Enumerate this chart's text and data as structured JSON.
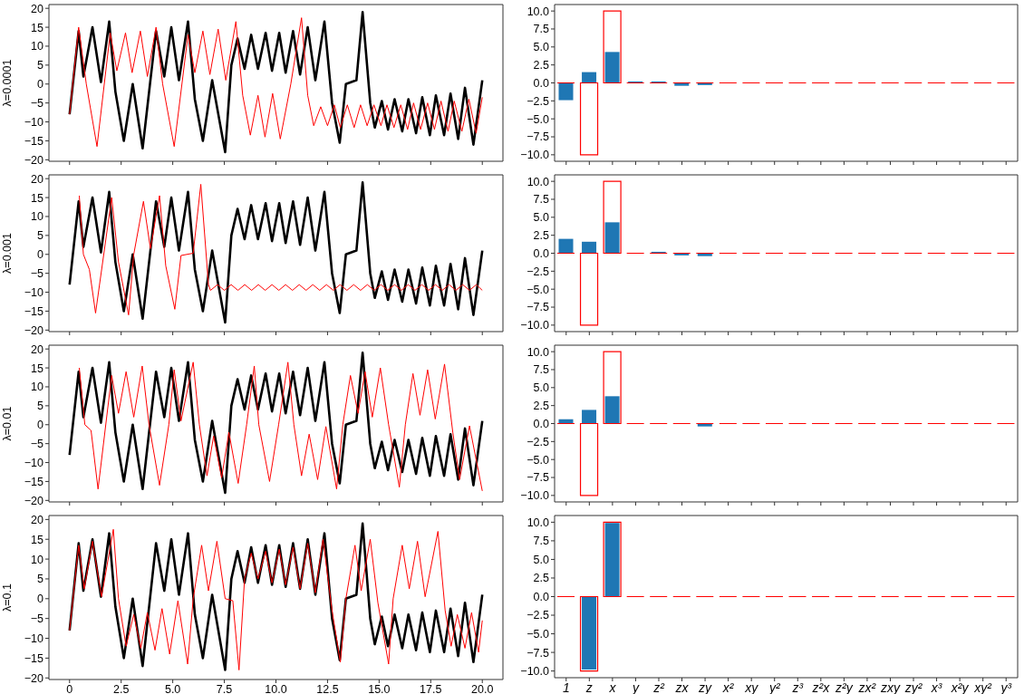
{
  "chart_data": [
    {
      "type": "line",
      "ylabel": "λ=0.0001",
      "marker": "none",
      "xlim": [
        -1,
        21
      ],
      "xticks": [
        0,
        2.5,
        {
          "value": 5,
          "label": null
        },
        7.5,
        {
          "value": 10,
          "label": null
        },
        12.5,
        {
          "value": 15,
          "label": null
        },
        17.5,
        {
          "value": 20,
          "label": null
        }
      ],
      "ylim": [
        -20.4,
        21
      ],
      "yticks": [
        {
          "value": -20,
          "label": "−20"
        },
        {
          "value": -15,
          "label": "−15"
        },
        {
          "value": -10,
          "label": "−10"
        },
        {
          "value": -5,
          "label": "−5"
        },
        0,
        5,
        10,
        15,
        20
      ],
      "tick_labels": "y",
      "series": [
        {
          "color": "#000000",
          "x": [
            0,
            0.44,
            0.67,
            1.11,
            1.52,
            1.92,
            2.22,
            2.63,
            3.06,
            3.54,
            4.19,
            4.59,
            4.93,
            5.3,
            5.74,
            6.07,
            6.46,
            6.91,
            7.54,
            7.84,
            8.14,
            8.48,
            8.8,
            9.13,
            9.5,
            9.81,
            10.16,
            10.47,
            10.83,
            11.17,
            11.54,
            11.91,
            12.35,
            12.72,
            13.09,
            13.39,
            13.9,
            14.2,
            14.57,
            14.79,
            15.13,
            15.43,
            15.75,
            16.12,
            16.42,
            16.79,
            17.09,
            17.46,
            17.75,
            18.15,
            18.46,
            18.83,
            19.16,
            19.57,
            20
          ],
          "values": [
            -8,
            14,
            2,
            15,
            0.5,
            16.5,
            -2,
            -15,
            0,
            -17,
            14,
            2,
            15,
            1,
            16.5,
            -4,
            -15,
            1,
            -18,
            5,
            12,
            4,
            13,
            4,
            13.5,
            3.5,
            13.5,
            3,
            14,
            2.5,
            15,
            1,
            16.5,
            -5,
            -15.5,
            0,
            1,
            19,
            -5,
            -11.5,
            -4.5,
            -12,
            -4,
            -12.5,
            -4,
            -13,
            -3.5,
            -13.5,
            -3,
            -13.5,
            -2.5,
            -14.5,
            -1,
            -16,
            1
          ]
        },
        {
          "color": "#ff0000",
          "x": [
            0,
            0.44,
            0.81,
            1.33,
            1.97,
            2.29,
            2.71,
            3.03,
            3.43,
            3.77,
            4.19,
            4.51,
            5.07,
            5.74,
            6.07,
            6.46,
            6.8,
            7.2,
            7.57,
            8.06,
            8.39,
            8.76,
            9.13,
            9.47,
            9.84,
            10.21,
            10.72,
            11.24,
            11.54,
            11.83,
            12.17,
            12.5,
            12.83,
            13.12,
            13.46,
            13.79,
            14.1,
            14.42,
            14.75,
            15.09,
            15.38,
            15.72,
            16.05,
            16.38,
            16.67,
            17.01,
            17.35,
            17.68,
            18.0,
            18.34,
            18.64,
            19.01,
            19.35,
            19.7,
            20
          ],
          "values": [
            -8,
            15,
            0,
            -16.5,
            13.5,
            3.5,
            13.5,
            3,
            14,
            2,
            15,
            0,
            -16.5,
            13,
            3,
            14,
            2.5,
            14.5,
            1,
            16.5,
            -3,
            -13.5,
            -3,
            -14,
            -2.5,
            -14.5,
            0,
            17.5,
            -3,
            -11,
            -6,
            -11,
            -5.5,
            -11.5,
            -5.5,
            -11.5,
            -5.5,
            -11,
            -5.5,
            -11,
            -5.5,
            -11.5,
            -5.5,
            -12,
            -5,
            -12,
            -5,
            -12,
            -4.5,
            -12.5,
            -4.5,
            -12.5,
            -4,
            -13,
            -3.5
          ]
        }
      ]
    },
    {
      "type": "bar",
      "categories": [
        null,
        null,
        null,
        null,
        null,
        null,
        null,
        null,
        null,
        null,
        null,
        null,
        null,
        null,
        null,
        null,
        null,
        null,
        null,
        null
      ],
      "ylim": [
        -10.9,
        10.9
      ],
      "yticks": [
        {
          "value": -10,
          "label": "−10.0"
        },
        {
          "value": -7.5,
          "label": "−7.5"
        },
        {
          "value": -5,
          "label": "−5.0"
        },
        {
          "value": -2.5,
          "label": "−2.5"
        },
        {
          "value": 0,
          "label": "0.0"
        },
        2.5,
        {
          "value": 5,
          "label": "5.0"
        },
        7.5,
        {
          "value": 10,
          "label": "10.0"
        }
      ],
      "tick_labels": "y",
      "series": [
        {
          "color": "#1f77b4",
          "values": [
            -2.4,
            1.5,
            4.3,
            0.2,
            0.2,
            -0.4,
            -0.3,
            null,
            null,
            0,
            0,
            0,
            0,
            0,
            0,
            0,
            0,
            0,
            0,
            0
          ]
        },
        {
          "color": "#ff0000",
          "values": [
            0,
            -10,
            10,
            0,
            0,
            0,
            0,
            0,
            0,
            0,
            0,
            0,
            0,
            0,
            0,
            0,
            0,
            0,
            0,
            0
          ]
        }
      ]
    },
    {
      "type": "line",
      "ylabel": "λ=0.001",
      "marker": "none",
      "xlim": [
        -1,
        21
      ],
      "xticks": [
        0,
        2.5,
        {
          "value": 5,
          "label": null
        },
        7.5,
        {
          "value": 10,
          "label": null
        },
        12.5,
        {
          "value": 15,
          "label": null
        },
        17.5,
        {
          "value": 20,
          "label": null
        }
      ],
      "ylim": [
        -20.4,
        21
      ],
      "yticks": [
        {
          "value": -20,
          "label": "−20"
        },
        {
          "value": -15,
          "label": "−15"
        },
        {
          "value": -10,
          "label": "−10"
        },
        {
          "value": -5,
          "label": "−5"
        },
        0,
        5,
        10,
        15,
        20
      ],
      "tick_labels": "y",
      "series": [
        {
          "color": "#000000",
          "x": [
            0,
            0.44,
            0.67,
            1.11,
            1.52,
            1.92,
            2.22,
            2.63,
            3.06,
            3.54,
            4.19,
            4.59,
            4.93,
            5.3,
            5.74,
            6.07,
            6.46,
            6.91,
            7.54,
            7.84,
            8.14,
            8.48,
            8.8,
            9.13,
            9.5,
            9.81,
            10.16,
            10.47,
            10.83,
            11.17,
            11.54,
            11.91,
            12.35,
            12.72,
            13.09,
            13.39,
            13.9,
            14.2,
            14.57,
            14.79,
            15.13,
            15.43,
            15.75,
            16.12,
            16.42,
            16.79,
            17.09,
            17.46,
            17.75,
            18.15,
            18.46,
            18.83,
            19.16,
            19.57,
            20
          ],
          "values": [
            -8,
            14,
            2,
            15,
            0.5,
            16.5,
            -2,
            -15,
            0,
            -17,
            14,
            2,
            15,
            1,
            16.5,
            -4,
            -15,
            1,
            -18,
            5,
            12,
            4,
            13,
            4,
            13.5,
            3.5,
            13.5,
            3,
            14,
            2.5,
            15,
            1,
            16.5,
            -5,
            -15.5,
            0,
            1,
            19,
            -5,
            -11.5,
            -4.5,
            -12,
            -4,
            -12.5,
            -4,
            -13,
            -3.5,
            -13.5,
            -3,
            -13.5,
            -2.5,
            -14.5,
            -1,
            -16,
            1
          ]
        },
        {
          "color": "#ff0000",
          "x": [
            0.47,
            0.67,
            0.96,
            1.26,
            2.04,
            2.37,
            2.86,
            3.11,
            3.58,
            3.92,
            4.36,
            4.66,
            5.1,
            5.4,
            5.99,
            6.36,
            6.73,
            6.83,
            7.17,
            7.5,
            7.83,
            8.16,
            8.49,
            8.82,
            9.15,
            9.48,
            9.81,
            10.14,
            10.47,
            10.8,
            11.13,
            11.46,
            11.79,
            12.12,
            12.45,
            12.78,
            13.11,
            13.44,
            13.77,
            14.1,
            14.43,
            14.76,
            15.09,
            15.42,
            15.75,
            16.08,
            16.41,
            16.74,
            17.07,
            17.4,
            17.73,
            18.06,
            18.39,
            18.72,
            19.05,
            19.38,
            19.71,
            20
          ],
          "values": [
            15.5,
            0,
            -4,
            -15.5,
            15,
            -2,
            -16,
            0,
            14,
            1.5,
            15.5,
            -3,
            -14.5,
            -0.3,
            0.3,
            18.5,
            -8,
            -9.5,
            -8,
            -9.5,
            -8,
            -9.5,
            -8,
            -9.5,
            -8,
            -9.5,
            -8,
            -9.5,
            -8,
            -9.5,
            -8,
            -9.5,
            -8,
            -9.5,
            -8,
            -9.5,
            -8,
            -9.5,
            -8,
            -9.5,
            -8,
            -9.5,
            -8,
            -9.5,
            -8,
            -9.5,
            -8,
            -9.5,
            -8,
            -9.5,
            -8,
            -9.5,
            -8,
            -9.5,
            -8,
            -9.5,
            -8,
            -9.5
          ]
        }
      ]
    },
    {
      "type": "bar",
      "categories": [
        null,
        null,
        null,
        null,
        null,
        null,
        null,
        null,
        null,
        null,
        null,
        null,
        null,
        null,
        null,
        null,
        null,
        null,
        null,
        null
      ],
      "ylim": [
        -10.9,
        10.9
      ],
      "yticks": [
        {
          "value": -10,
          "label": "−10.0"
        },
        {
          "value": -7.5,
          "label": "−7.5"
        },
        {
          "value": -5,
          "label": "−5.0"
        },
        {
          "value": -2.5,
          "label": "−2.5"
        },
        {
          "value": 0,
          "label": "0.0"
        },
        2.5,
        {
          "value": 5,
          "label": "5.0"
        },
        7.5,
        {
          "value": 10,
          "label": "10.0"
        }
      ],
      "tick_labels": "y",
      "series": [
        {
          "color": "#1f77b4",
          "values": [
            2,
            1.6,
            4.3,
            0,
            0.2,
            -0.3,
            -0.4,
            0,
            0,
            0,
            0,
            0,
            0,
            0,
            0,
            0,
            0,
            0,
            0,
            0
          ]
        },
        {
          "color": "#ff0000",
          "values": [
            0,
            -10,
            10,
            0,
            0,
            0,
            0,
            0,
            0,
            0,
            0,
            0,
            0,
            0,
            0,
            0,
            0,
            0,
            0,
            0
          ]
        }
      ]
    },
    {
      "type": "line",
      "ylabel": "λ=0.01",
      "marker": "none",
      "xlim": [
        -1,
        21
      ],
      "xticks": [
        0,
        2.5,
        {
          "value": 5,
          "label": null
        },
        7.5,
        {
          "value": 10,
          "label": null
        },
        12.5,
        {
          "value": 15,
          "label": null
        },
        17.5,
        {
          "value": 20,
          "label": null
        }
      ],
      "ylim": [
        -20.4,
        21
      ],
      "yticks": [
        {
          "value": -20,
          "label": "−20"
        },
        {
          "value": -15,
          "label": "−15"
        },
        {
          "value": -10,
          "label": "−10"
        },
        {
          "value": -5,
          "label": "−5"
        },
        0,
        5,
        10,
        15,
        20
      ],
      "tick_labels": "y",
      "series": [
        {
          "color": "#000000",
          "x": [
            0,
            0.44,
            0.67,
            1.11,
            1.52,
            1.92,
            2.22,
            2.63,
            3.06,
            3.54,
            4.19,
            4.59,
            4.93,
            5.3,
            5.74,
            6.07,
            6.46,
            6.91,
            7.54,
            7.84,
            8.14,
            8.48,
            8.8,
            9.13,
            9.5,
            9.81,
            10.16,
            10.47,
            10.83,
            11.17,
            11.54,
            11.91,
            12.35,
            12.72,
            13.09,
            13.39,
            13.9,
            14.2,
            14.57,
            14.79,
            15.13,
            15.43,
            15.75,
            16.12,
            16.42,
            16.79,
            17.09,
            17.46,
            17.75,
            18.15,
            18.46,
            18.83,
            19.16,
            19.57,
            20
          ],
          "values": [
            -8,
            14,
            2,
            15,
            0.5,
            16.5,
            -2,
            -15,
            0,
            -17,
            14,
            2,
            15,
            1,
            16.5,
            -4,
            -15,
            1,
            -18,
            5,
            12,
            4,
            13,
            4,
            13.5,
            3.5,
            13.5,
            3,
            14,
            2.5,
            15,
            1,
            16.5,
            -5,
            -15.5,
            0,
            1,
            19,
            -5,
            -11.5,
            -4.5,
            -12,
            -4,
            -12.5,
            -4,
            -13,
            -3.5,
            -13.5,
            -3,
            -13.5,
            -2.5,
            -14.5,
            -1,
            -16,
            1
          ]
        },
        {
          "color": "#ff0000",
          "x": [
            0.47,
            0.74,
            1.04,
            1.38,
            2.04,
            2.37,
            2.74,
            3.11,
            3.52,
            3.85,
            4.36,
            4.81,
            5.07,
            5.4,
            5.99,
            6.29,
            6.66,
            6.98,
            7.37,
            7.72,
            8.17,
            8.58,
            8.95,
            9.17,
            9.69,
            10.13,
            10.58,
            10.87,
            11.24,
            11.61,
            12.02,
            12.42,
            12.94,
            13.24,
            13.61,
            13.98,
            14.32,
            14.67,
            15.06,
            15.46,
            15.98,
            16.27,
            16.64,
            16.98,
            17.35,
            17.72,
            18.17,
            18.57,
            18.9,
            19.38,
            20
          ],
          "values": [
            15,
            0,
            -1.5,
            -17,
            13,
            3,
            14,
            2,
            15.5,
            0,
            -16,
            0,
            14.5,
            1,
            16.5,
            0,
            -13.5,
            -3,
            -14,
            -2,
            -15.5,
            0,
            15.5,
            0,
            -15,
            0,
            16.5,
            0,
            -13.5,
            -2.5,
            -14.5,
            -0.5,
            -17,
            0,
            13,
            3,
            14,
            2,
            15,
            0,
            -16.5,
            0,
            13.5,
            2.5,
            14.5,
            1.5,
            16,
            -2,
            -14.5,
            -0.3,
            -17.5
          ]
        }
      ]
    },
    {
      "type": "bar",
      "categories": [
        null,
        null,
        null,
        null,
        null,
        null,
        null,
        null,
        null,
        null,
        null,
        null,
        null,
        null,
        null,
        null,
        null,
        null,
        null,
        null
      ],
      "ylim": [
        -10.9,
        10.9
      ],
      "yticks": [
        {
          "value": -10,
          "label": "−10.0"
        },
        {
          "value": -7.5,
          "label": "−7.5"
        },
        {
          "value": -5,
          "label": "−5.0"
        },
        {
          "value": -2.5,
          "label": "−2.5"
        },
        {
          "value": 0,
          "label": "0.0"
        },
        2.5,
        {
          "value": 5,
          "label": "5.0"
        },
        7.5,
        {
          "value": 10,
          "label": "10.0"
        }
      ],
      "tick_labels": "y",
      "series": [
        {
          "color": "#1f77b4",
          "values": [
            0.6,
            1.9,
            3.8,
            0,
            0,
            0,
            -0.4,
            0,
            null,
            0,
            0,
            0,
            0,
            0,
            0,
            0,
            0,
            0,
            0,
            0
          ]
        },
        {
          "color": "#ff0000",
          "values": [
            0,
            -10,
            10,
            0,
            0,
            0,
            0,
            0,
            0,
            0,
            0,
            0,
            0,
            0,
            0,
            0,
            0,
            0,
            0,
            0
          ]
        }
      ]
    },
    {
      "type": "line",
      "ylabel": "λ=0.1",
      "marker": "none",
      "xlim": [
        -1,
        21
      ],
      "xticks": [
        0,
        2.5,
        {
          "value": 5,
          "label": "5.0"
        },
        7.5,
        {
          "value": 10,
          "label": "10.0"
        },
        12.5,
        {
          "value": 15,
          "label": "15.0"
        },
        17.5,
        {
          "value": 20,
          "label": "20.0"
        }
      ],
      "ylim": [
        -20.4,
        21
      ],
      "yticks": [
        {
          "value": -20,
          "label": "−20"
        },
        {
          "value": -15,
          "label": "−15"
        },
        {
          "value": -10,
          "label": "−10"
        },
        {
          "value": -5,
          "label": "−5"
        },
        0,
        5,
        10,
        15,
        20
      ],
      "series": [
        {
          "color": "#000000",
          "x": [
            0,
            0.44,
            0.67,
            1.11,
            1.52,
            1.92,
            2.22,
            2.63,
            3.06,
            3.54,
            4.19,
            4.59,
            4.93,
            5.3,
            5.74,
            6.07,
            6.46,
            6.91,
            7.54,
            7.84,
            8.14,
            8.48,
            8.8,
            9.13,
            9.5,
            9.81,
            10.16,
            10.47,
            10.83,
            11.17,
            11.54,
            11.91,
            12.35,
            12.72,
            13.09,
            13.39,
            13.9,
            14.2,
            14.57,
            14.79,
            15.13,
            15.43,
            15.75,
            16.12,
            16.42,
            16.79,
            17.09,
            17.46,
            17.75,
            18.15,
            18.46,
            18.83,
            19.16,
            19.57,
            20
          ],
          "values": [
            -8,
            14,
            2,
            15,
            0.5,
            16.5,
            -2,
            -15,
            0,
            -17,
            14,
            2,
            15,
            1,
            16.5,
            -4,
            -15,
            1,
            -18,
            5,
            12,
            4,
            13,
            4,
            13.5,
            3.5,
            13.5,
            3,
            14,
            2.5,
            15,
            1,
            16.5,
            -5,
            -15.5,
            0,
            1,
            19,
            -5,
            -11.5,
            -4.5,
            -12,
            -4,
            -12.5,
            -4,
            -13,
            -3.5,
            -13.5,
            -3,
            -13.5,
            -2.5,
            -14.5,
            -1,
            -16,
            1
          ]
        },
        {
          "color": "#ff0000",
          "x": [
            0,
            0.44,
            0.71,
            1.11,
            1.55,
            2.12,
            2.37,
            2.74,
            3.11,
            3.45,
            3.77,
            4.14,
            4.48,
            4.85,
            5.25,
            5.72,
            5.99,
            6.4,
            6.73,
            7.14,
            7.54,
            7.91,
            8.21,
            8.48,
            8.8,
            9.13,
            9.5,
            9.81,
            10.16,
            10.47,
            10.83,
            11.17,
            11.54,
            11.91,
            12.28,
            12.72,
            13.12,
            13.39,
            13.83,
            14.13,
            14.57,
            14.94,
            15.46,
            15.68,
            16.12,
            16.46,
            16.86,
            17.23,
            17.85,
            18.2,
            18.49,
            18.79,
            19.16,
            19.48,
            19.82,
            20
          ],
          "values": [
            -8,
            13.5,
            2.5,
            14.5,
            0.5,
            17.5,
            0,
            -12,
            -4,
            -12.5,
            -3.5,
            -13,
            -2.5,
            -14,
            -0.5,
            -16.5,
            0,
            13.5,
            2,
            14.5,
            0,
            -0.5,
            -18,
            5,
            11.5,
            5,
            12,
            4,
            12.5,
            3.5,
            13,
            2.5,
            14,
            1.5,
            15,
            -3,
            -16,
            0,
            13.5,
            2,
            15,
            -1,
            -16.5,
            0,
            13.5,
            2.5,
            14.5,
            0.5,
            17,
            -3,
            -12,
            -4,
            -12.5,
            -3.5,
            -13.5,
            -5.5
          ]
        }
      ]
    },
    {
      "type": "bar",
      "categories": [
        "1",
        "z",
        "x",
        "y",
        "z²",
        "zx",
        "zy",
        "x²",
        "xy",
        "y²",
        "z³",
        "z²x",
        "z²y",
        "zx²",
        "zxy",
        "zy²",
        "x³",
        "x²y",
        "xy²",
        "y³"
      ],
      "ylim": [
        -10.9,
        10.9
      ],
      "yticks": [
        {
          "value": -10,
          "label": "−10.0"
        },
        {
          "value": -7.5,
          "label": "−7.5"
        },
        {
          "value": -5,
          "label": "−5.0"
        },
        {
          "value": -2.5,
          "label": "−2.5"
        },
        {
          "value": 0,
          "label": "0.0"
        },
        2.5,
        {
          "value": 5,
          "label": "5.0"
        },
        7.5,
        {
          "value": 10,
          "label": "10.0"
        }
      ],
      "series": [
        {
          "color": "#1f77b4",
          "values": [
            0,
            -9.8,
            9.9,
            0,
            0,
            0,
            0,
            0,
            0,
            0,
            0,
            0,
            0,
            0,
            0,
            0,
            0,
            0,
            0,
            0
          ]
        },
        {
          "color": "#ff0000",
          "values": [
            0,
            -10,
            10,
            0,
            0,
            0,
            0,
            0,
            0,
            0,
            0,
            0,
            0,
            0,
            0,
            0,
            0,
            0,
            0,
            0
          ]
        }
      ]
    }
  ]
}
